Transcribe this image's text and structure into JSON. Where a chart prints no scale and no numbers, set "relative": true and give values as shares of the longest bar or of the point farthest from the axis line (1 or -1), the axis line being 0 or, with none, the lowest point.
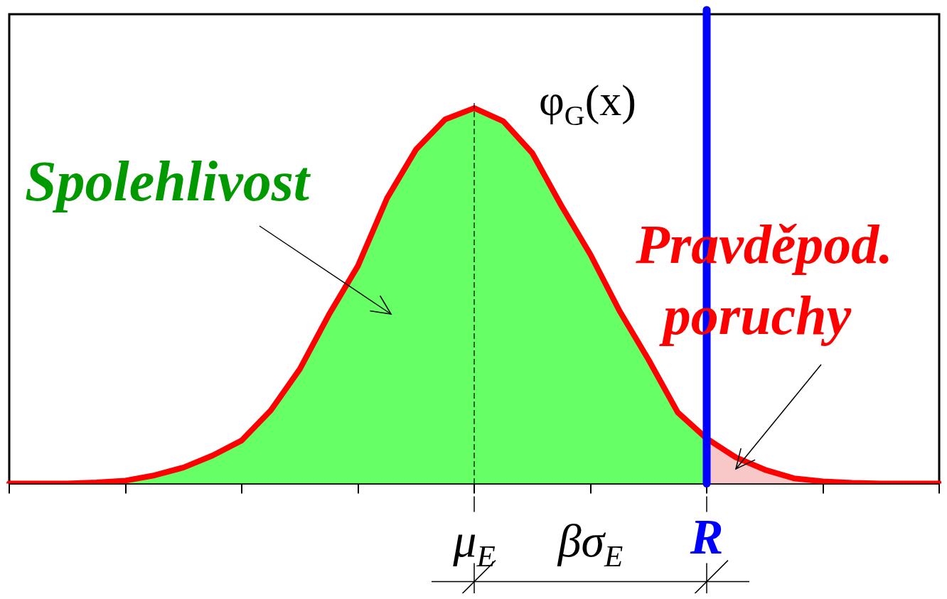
{
  "chart_data": {
    "type": "area",
    "relative": true,
    "legend": false,
    "marker": "none",
    "categories": [
      null,
      null,
      null,
      null,
      null,
      null,
      null,
      null,
      null,
      null,
      null,
      null,
      null,
      null,
      null,
      null,
      "μ$_{E}$",
      null,
      null,
      null,
      null,
      null,
      null,
      null,
      "R",
      null,
      null,
      null,
      null,
      null,
      null,
      null,
      null
    ],
    "series": [
      {
        "color": "#66ff66",
        "values": [
          0,
          0,
          0,
          0.003,
          0.008,
          0.022,
          0.043,
          0.075,
          0.115,
          0.195,
          0.305,
          0.45,
          0.58,
          0.76,
          0.89,
          0.97,
          1,
          0.965,
          0.88,
          0.74,
          0.61,
          0.46,
          0.33,
          0.19,
          0.12,
          null,
          null,
          null,
          null,
          null,
          null,
          null,
          null
        ]
      },
      {
        "color": "#f8c8c8",
        "values": [
          null,
          null,
          null,
          null,
          null,
          null,
          null,
          null,
          null,
          null,
          null,
          null,
          null,
          null,
          null,
          null,
          null,
          null,
          null,
          null,
          null,
          null,
          null,
          null,
          0.12,
          0.07,
          0.037,
          0.014,
          0.006,
          0.002,
          0,
          0,
          0
        ]
      },
      {
        "type": "line",
        "color": "#ff0000",
        "values": [
          0,
          0,
          0,
          0.003,
          0.008,
          0.022,
          0.043,
          0.075,
          0.115,
          0.195,
          0.305,
          0.45,
          0.58,
          0.76,
          0.89,
          0.97,
          1,
          0.965,
          0.88,
          0.74,
          0.61,
          0.46,
          0.33,
          0.19,
          0.12,
          0.07,
          0.037,
          0.014,
          0.006,
          0.002,
          0,
          0,
          0
        ]
      }
    ],
    "ref_lines": [
      {
        "axis": "x",
        "value": "μ$_{E}$",
        "color": "#000000",
        "line_style": "dashed"
      },
      {
        "axis": "x",
        "value": "R",
        "color": "#0000ff"
      }
    ],
    "annotations": [
      "Spolehlivost",
      "Pravděpod. poruchy",
      "φ$_{G}$(x)",
      "βσ$_{E}$"
    ]
  }
}
